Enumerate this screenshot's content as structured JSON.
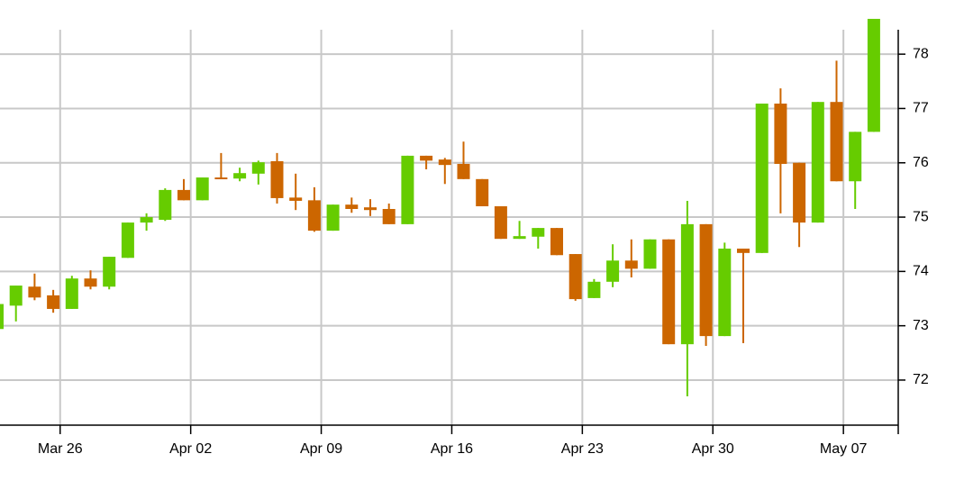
{
  "chart_data": {
    "type": "candlestick",
    "x": [
      "Mar 22",
      "Mar 23",
      "Mar 24",
      "Mar 25",
      "Mar 26",
      "Mar 27",
      "Mar 28",
      "Mar 29",
      "Mar 30",
      "Mar 31",
      "Apr 01",
      "Apr 02",
      "Apr 03",
      "Apr 04",
      "Apr 05",
      "Apr 06",
      "Apr 07",
      "Apr 08",
      "Apr 09",
      "Apr 10",
      "Apr 11",
      "Apr 12",
      "Apr 13",
      "Apr 14",
      "Apr 15",
      "Apr 16",
      "Apr 17",
      "Apr 18",
      "Apr 19",
      "Apr 20",
      "Apr 21",
      "Apr 22",
      "Apr 23",
      "Apr 24",
      "Apr 25",
      "Apr 26",
      "Apr 27",
      "Apr 28",
      "Apr 29",
      "Apr 30",
      "May 01",
      "May 02",
      "May 03",
      "May 04",
      "May 05",
      "May 06",
      "May 07",
      "May 08"
    ],
    "open": [
      72.94,
      73.37,
      73.72,
      73.56,
      73.31,
      73.87,
      73.72,
      74.25,
      74.9,
      74.95,
      75.5,
      75.31,
      75.73,
      75.71,
      75.8,
      76.03,
      75.36,
      75.31,
      74.75,
      75.23,
      75.18,
      75.15,
      74.87,
      76.13,
      76.06,
      75.98,
      75.7,
      75.2,
      74.6,
      74.64,
      74.8,
      74.32,
      73.51,
      73.81,
      74.2,
      74.05,
      74.59,
      72.66,
      74.87,
      72.81,
      74.42,
      74.34,
      77.09,
      76.0,
      74.9,
      77.12,
      75.66,
      76.57
    ],
    "high": [
      73.4,
      73.74,
      73.96,
      73.66,
      73.92,
      74.02,
      74.27,
      74.9,
      75.07,
      75.53,
      75.7,
      75.73,
      76.18,
      75.91,
      76.04,
      76.18,
      75.8,
      75.55,
      75.23,
      75.36,
      75.33,
      75.25,
      76.13,
      76.13,
      76.09,
      76.39,
      75.7,
      75.2,
      74.93,
      74.8,
      74.8,
      74.32,
      73.86,
      74.5,
      74.59,
      74.59,
      74.59,
      75.3,
      74.87,
      74.53,
      74.42,
      77.09,
      77.37,
      76.0,
      77.12,
      77.88,
      76.57,
      78.65
    ],
    "low": [
      72.94,
      73.08,
      73.47,
      73.24,
      73.31,
      73.67,
      73.67,
      74.25,
      74.75,
      74.93,
      75.31,
      75.31,
      75.7,
      75.66,
      75.6,
      75.25,
      75.13,
      74.73,
      74.75,
      75.08,
      75.02,
      74.87,
      74.87,
      75.88,
      75.61,
      75.7,
      75.2,
      74.6,
      74.6,
      74.42,
      74.3,
      73.46,
      73.51,
      73.71,
      73.89,
      74.05,
      72.66,
      71.7,
      72.63,
      72.81,
      72.68,
      74.34,
      75.07,
      74.45,
      74.9,
      75.66,
      75.15,
      76.57
    ],
    "close": [
      73.4,
      73.74,
      73.52,
      73.31,
      73.87,
      73.72,
      74.27,
      74.9,
      75.0,
      75.5,
      75.31,
      75.73,
      75.7,
      75.81,
      76.01,
      75.35,
      75.3,
      74.75,
      75.23,
      75.15,
      75.13,
      74.87,
      76.13,
      76.04,
      75.96,
      75.7,
      75.2,
      74.6,
      74.65,
      74.8,
      74.3,
      73.49,
      73.81,
      74.2,
      74.05,
      74.59,
      72.66,
      74.87,
      72.81,
      74.42,
      74.34,
      77.09,
      75.98,
      74.9,
      77.12,
      75.66,
      76.57,
      78.65
    ],
    "up_color": "#66cc00",
    "down_color": "#cc6600",
    "xticks": [
      "Mar 26",
      "Apr 02",
      "Apr 09",
      "Apr 16",
      "Apr 23",
      "Apr 30",
      "May 07"
    ],
    "ylim": [
      71.17,
      78.45
    ],
    "yticks": [
      72,
      73,
      74,
      75,
      76,
      77,
      78
    ],
    "grid": true
  }
}
